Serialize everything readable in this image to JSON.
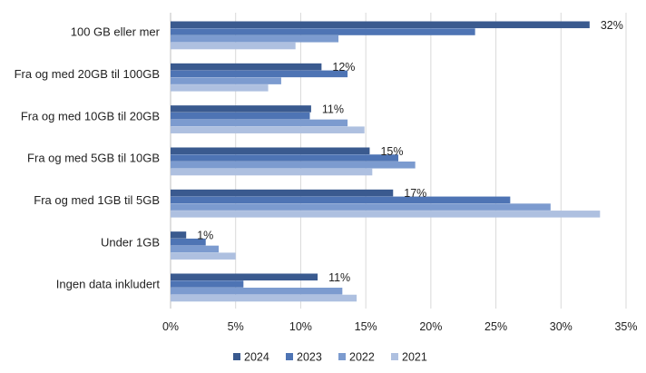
{
  "chart_data": {
    "type": "bar",
    "orientation": "horizontal",
    "categories": [
      "100 GB eller mer",
      "Fra og med 20GB til 100GB",
      "Fra og med 10GB til 20GB",
      "Fra og med 5GB til 10GB",
      "Fra og med 1GB til 5GB",
      "Under 1GB",
      "Ingen data inkludert"
    ],
    "series": [
      {
        "name": "2024",
        "color": "#3a5a8f",
        "values": [
          32.2,
          11.6,
          10.8,
          15.3,
          17.1,
          1.2,
          11.3
        ]
      },
      {
        "name": "2023",
        "color": "#4e74b4",
        "values": [
          23.4,
          13.6,
          10.7,
          17.5,
          26.1,
          2.7,
          5.6
        ]
      },
      {
        "name": "2022",
        "color": "#7c9bcf",
        "values": [
          12.9,
          8.5,
          13.6,
          18.8,
          29.2,
          3.7,
          13.2
        ]
      },
      {
        "name": "2021",
        "color": "#aec0e0",
        "values": [
          9.6,
          7.5,
          14.9,
          15.5,
          33.0,
          5.0,
          14.3
        ]
      }
    ],
    "data_labels": [
      "32%",
      "12%",
      "11%",
      "15%",
      "17%",
      "1%",
      "11%"
    ],
    "x_ticks": [
      "0%",
      "5%",
      "10%",
      "15%",
      "20%",
      "25%",
      "30%",
      "35%"
    ],
    "xlim": [
      0,
      35
    ],
    "grid": true,
    "legend_position": "bottom"
  }
}
